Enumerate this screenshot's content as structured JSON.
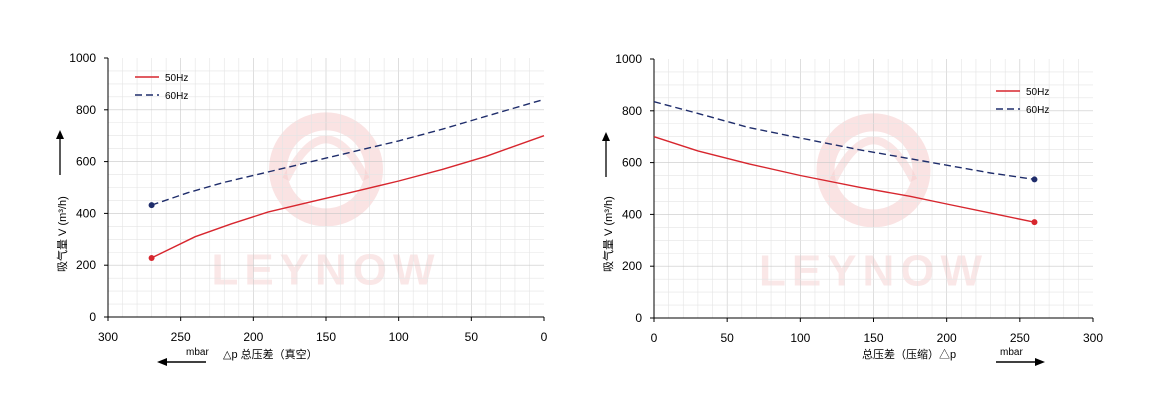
{
  "chart_data": [
    {
      "type": "line",
      "xlabel": "△p  总压差（真空）",
      "x_unit": "mbar",
      "ylabel": "吸气量 V (m³/h)",
      "xlim": [
        300,
        0
      ],
      "ylim": [
        0,
        1000
      ],
      "x_reversed": true,
      "x_ticks": [
        "300",
        "250",
        "200",
        "150",
        "100",
        "50",
        "0"
      ],
      "y_ticks": [
        "0",
        "200",
        "400",
        "600",
        "800",
        "1000"
      ],
      "grid": true,
      "legend_position": "top-left",
      "series": [
        {
          "name": "50Hz",
          "color": "#d7262e",
          "dash": "solid",
          "x": [
            270,
            240,
            215,
            190,
            160,
            130,
            100,
            70,
            40,
            0
          ],
          "y": [
            228,
            310,
            360,
            405,
            445,
            485,
            525,
            570,
            620,
            700
          ]
        },
        {
          "name": "60Hz",
          "color": "#1f2d6b",
          "dash": "dashed",
          "x": [
            270,
            245,
            220,
            190,
            160,
            130,
            100,
            70,
            40,
            0
          ],
          "y": [
            432,
            480,
            520,
            560,
            600,
            640,
            680,
            725,
            775,
            840
          ]
        }
      ],
      "arrow_direction": "left"
    },
    {
      "type": "line",
      "xlabel": "总压差（压缩）△p",
      "x_unit": "mbar",
      "ylabel": "吸气量 V (m³/h)",
      "xlim": [
        0,
        300
      ],
      "ylim": [
        0,
        1000
      ],
      "x_reversed": false,
      "x_ticks": [
        "0",
        "50",
        "100",
        "150",
        "200",
        "250",
        "300"
      ],
      "y_ticks": [
        "0",
        "200",
        "400",
        "600",
        "800",
        "1000"
      ],
      "grid": true,
      "legend_position": "top-right",
      "series": [
        {
          "name": "50Hz",
          "color": "#d7262e",
          "dash": "solid",
          "x": [
            0,
            30,
            65,
            100,
            140,
            175,
            200,
            230,
            260
          ],
          "y": [
            700,
            645,
            595,
            550,
            505,
            470,
            440,
            405,
            370
          ]
        },
        {
          "name": "60Hz",
          "color": "#1f2d6b",
          "dash": "dashed",
          "x": [
            0,
            30,
            65,
            100,
            140,
            175,
            200,
            230,
            260
          ],
          "y": [
            835,
            790,
            735,
            695,
            650,
            615,
            590,
            560,
            535
          ]
        }
      ],
      "arrow_direction": "right"
    }
  ],
  "watermark": {
    "text": "LEYNOW",
    "color": "#f6cccc"
  }
}
